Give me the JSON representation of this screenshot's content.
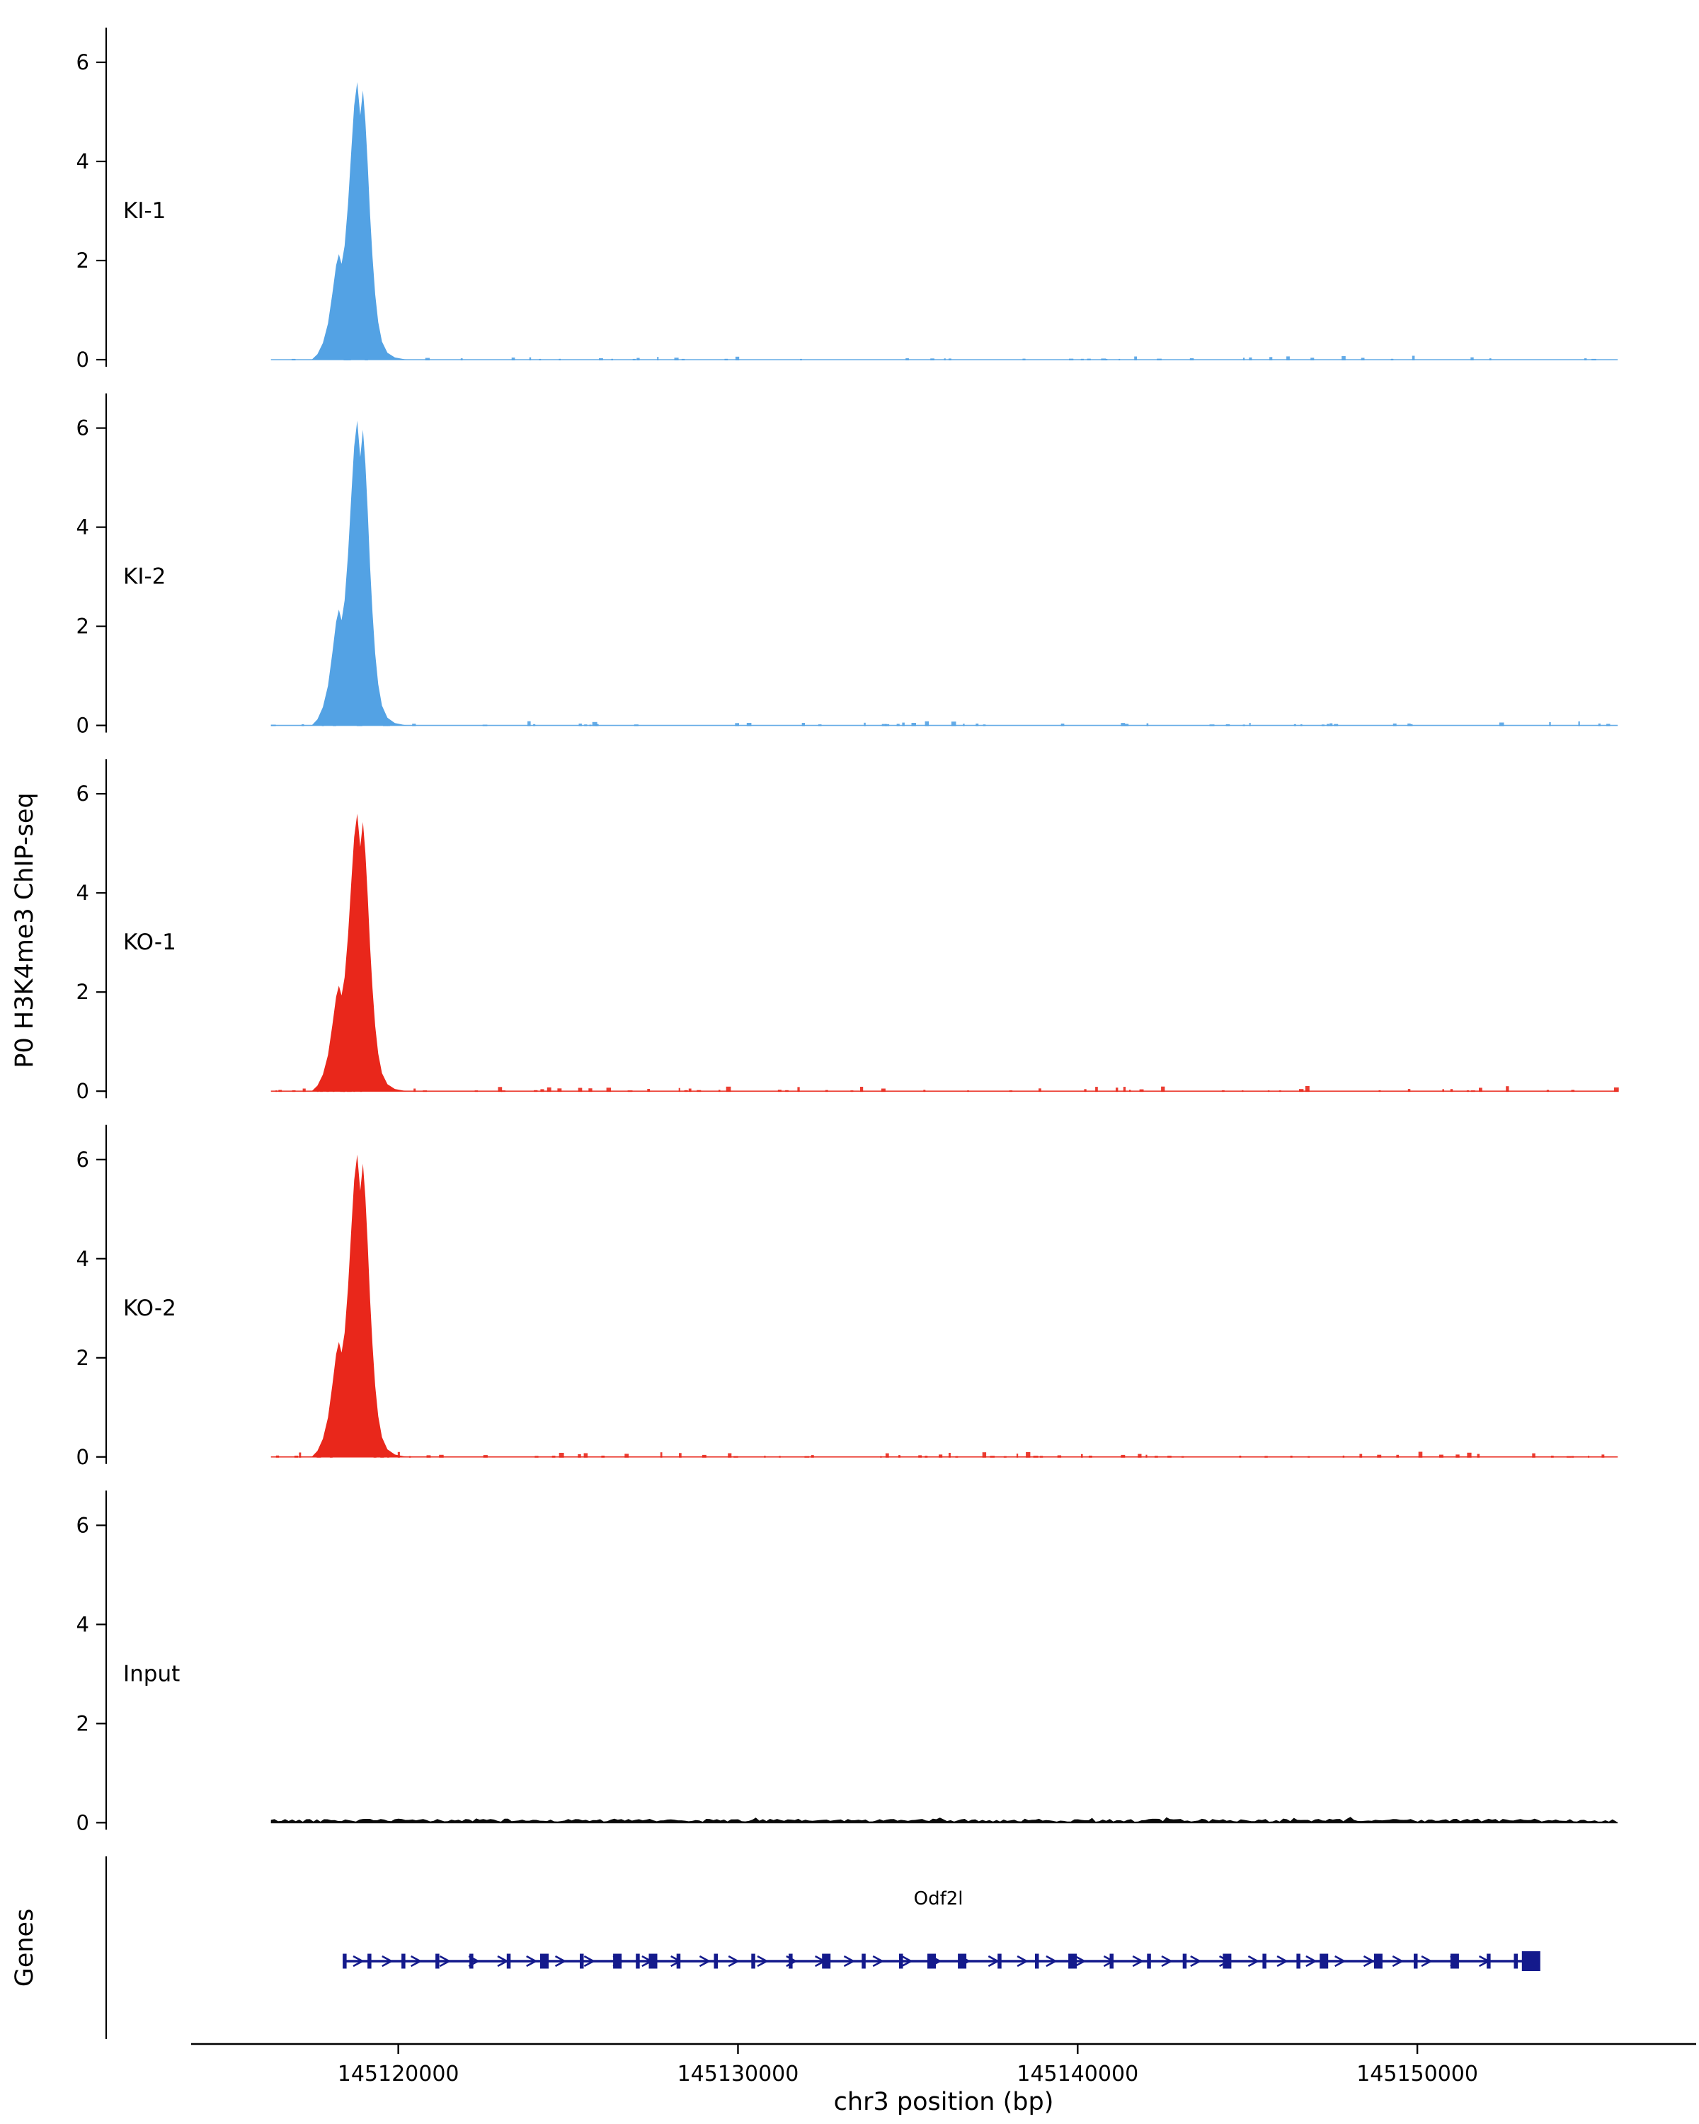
{
  "chart_data": {
    "type": "area",
    "title": "",
    "xlabel": "chr3 position (bp)",
    "ylabel": "P0 H3K4me3 ChIP-seq",
    "genes_label": "Genes",
    "x_domain": [
      145111400,
      145156000
    ],
    "x_ticks": [
      145120000,
      145130000,
      145140000,
      145150000
    ],
    "x_tick_labels": [
      "145120000",
      "145130000",
      "145140000",
      "145150000"
    ],
    "y_ticks": [
      6,
      4,
      2,
      0
    ],
    "ylim": [
      0,
      6.6
    ],
    "grid": false,
    "data_extent": [
      145116250,
      145155900
    ],
    "peak_profile": [
      [
        145117450,
        0.0
      ],
      [
        145117620,
        0.02
      ],
      [
        145117780,
        0.06
      ],
      [
        145117930,
        0.13
      ],
      [
        145118060,
        0.24
      ],
      [
        145118170,
        0.34
      ],
      [
        145118250,
        0.38
      ],
      [
        145118330,
        0.345
      ],
      [
        145118420,
        0.41
      ],
      [
        145118520,
        0.56
      ],
      [
        145118620,
        0.76
      ],
      [
        145118700,
        0.915
      ],
      [
        145118790,
        1.0
      ],
      [
        145118880,
        0.88
      ],
      [
        145118960,
        0.97
      ],
      [
        145119030,
        0.86
      ],
      [
        145119100,
        0.7
      ],
      [
        145119170,
        0.52
      ],
      [
        145119240,
        0.37
      ],
      [
        145119320,
        0.235
      ],
      [
        145119410,
        0.135
      ],
      [
        145119520,
        0.065
      ],
      [
        145119680,
        0.025
      ],
      [
        145119900,
        0.008
      ],
      [
        145120250,
        0.0
      ]
    ],
    "peak_center_bp": 145118800,
    "tracks": [
      {
        "label": "KI-1",
        "color": "#53A2E4",
        "peak_height": 5.6,
        "noise_seed": 3,
        "noise_amp": 0.07,
        "noise_density": 0.22,
        "kind": "chip"
      },
      {
        "label": "KI-2",
        "color": "#53A2E4",
        "peak_height": 6.15,
        "noise_seed": 7,
        "noise_amp": 0.07,
        "noise_density": 0.22,
        "kind": "chip"
      },
      {
        "label": "KO-1",
        "color": "#E9271B",
        "peak_height": 5.6,
        "noise_seed": 13,
        "noise_amp": 0.09,
        "noise_density": 0.3,
        "kind": "chip"
      },
      {
        "label": "KO-2",
        "color": "#E9271B",
        "peak_height": 6.1,
        "noise_seed": 21,
        "noise_amp": 0.09,
        "noise_density": 0.3,
        "kind": "chip"
      },
      {
        "label": "Input",
        "color": "#0a0a0a",
        "peak_height": 0,
        "noise_seed": 42,
        "noise_amp": 0.06,
        "noise_density": 1.0,
        "kind": "input"
      }
    ],
    "gene": {
      "name": "Odf2l",
      "start": 145118400,
      "end": 145153400,
      "strand": "+",
      "color": "#141A8C",
      "arrow_spacing_bp": 850,
      "exons": [
        {
          "bp": 145118420,
          "size": "s"
        },
        {
          "bp": 145119150,
          "size": "s"
        },
        {
          "bp": 145120150,
          "size": "s"
        },
        {
          "bp": 145121150,
          "size": "s"
        },
        {
          "bp": 145122150,
          "size": "s"
        },
        {
          "bp": 145123250,
          "size": "s"
        },
        {
          "bp": 145124300,
          "size": "m"
        },
        {
          "bp": 145125400,
          "size": "s"
        },
        {
          "bp": 145126450,
          "size": "m"
        },
        {
          "bp": 145127050,
          "size": "s"
        },
        {
          "bp": 145127500,
          "size": "m"
        },
        {
          "bp": 145128250,
          "size": "s"
        },
        {
          "bp": 145129350,
          "size": "s"
        },
        {
          "bp": 145130450,
          "size": "s"
        },
        {
          "bp": 145131550,
          "size": "s"
        },
        {
          "bp": 145132600,
          "size": "m"
        },
        {
          "bp": 145133700,
          "size": "s"
        },
        {
          "bp": 145134800,
          "size": "s"
        },
        {
          "bp": 145135700,
          "size": "m"
        },
        {
          "bp": 145136600,
          "size": "m"
        },
        {
          "bp": 145137700,
          "size": "s"
        },
        {
          "bp": 145138800,
          "size": "s"
        },
        {
          "bp": 145139850,
          "size": "m"
        },
        {
          "bp": 145141000,
          "size": "s"
        },
        {
          "bp": 145142100,
          "size": "s"
        },
        {
          "bp": 145143150,
          "size": "s"
        },
        {
          "bp": 145144400,
          "size": "m"
        },
        {
          "bp": 145145500,
          "size": "s"
        },
        {
          "bp": 145146500,
          "size": "s"
        },
        {
          "bp": 145147250,
          "size": "m"
        },
        {
          "bp": 145148850,
          "size": "m"
        },
        {
          "bp": 145149950,
          "size": "s"
        },
        {
          "bp": 145151100,
          "size": "m"
        },
        {
          "bp": 145152100,
          "size": "s"
        },
        {
          "bp": 145152900,
          "size": "s"
        }
      ],
      "end_box": {
        "bp": 145153350,
        "w": 26,
        "h": 28
      }
    }
  }
}
